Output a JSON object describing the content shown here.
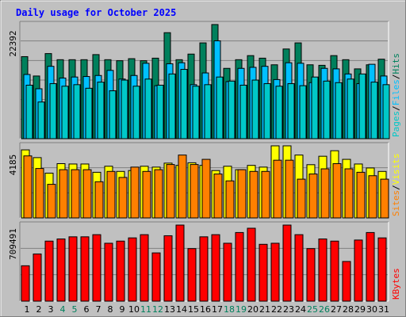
{
  "title": "Daily usage for October 2025",
  "colors": {
    "background": "#c0c0c0",
    "panel": "#c0c0c0",
    "title": "#0000ff",
    "hits": "#00805c",
    "files": "#00c0ff",
    "pages": "#00c8c8",
    "visits": "#ffff00",
    "sites": "#ff8000",
    "kbytes": "#ff0000",
    "day_normal": "#000000",
    "day_weekend": "#00805c"
  },
  "chart_data": [
    {
      "type": "bar",
      "panel": "top",
      "categories": [
        "1",
        "2",
        "3",
        "4",
        "5",
        "6",
        "7",
        "8",
        "9",
        "10",
        "11",
        "12",
        "13",
        "14",
        "15",
        "16",
        "17",
        "18",
        "19",
        "20",
        "21",
        "22",
        "23",
        "24",
        "25",
        "26",
        "27",
        "28",
        "29",
        "30",
        "31"
      ],
      "ymax_label": "22392",
      "right_labels": [
        "Pages",
        "/",
        "Files",
        "/",
        "Hits"
      ],
      "ylim": [
        0,
        22392
      ],
      "series": [
        {
          "name": "Hits",
          "values": [
            16100,
            12300,
            16700,
            15500,
            15500,
            15500,
            16500,
            15500,
            15300,
            15700,
            15300,
            15800,
            20800,
            15500,
            16600,
            18800,
            22400,
            13800,
            15500,
            16300,
            15800,
            14500,
            17600,
            18800,
            14500,
            14400,
            16300,
            15500,
            13700,
            14500,
            15600
          ]
        },
        {
          "name": "Files",
          "values": [
            12600,
            9800,
            14200,
            11900,
            12100,
            12200,
            12400,
            13400,
            11700,
            12400,
            14800,
            10400,
            14700,
            14900,
            10600,
            12900,
            19200,
            11200,
            13800,
            14000,
            14200,
            11600,
            14900,
            14800,
            11000,
            13800,
            13700,
            12700,
            10800,
            14600,
            12300
          ]
        },
        {
          "name": "Pages",
          "values": [
            10500,
            7200,
            10800,
            10300,
            10600,
            9900,
            11100,
            9400,
            11500,
            10300,
            11700,
            10500,
            12700,
            13600,
            10300,
            10600,
            12100,
            11300,
            10500,
            11500,
            10800,
            10300,
            10800,
            10400,
            12100,
            11300,
            11000,
            11700,
            12700,
            11100,
            10600
          ]
        }
      ]
    },
    {
      "type": "bar",
      "panel": "middle",
      "categories": [
        "1",
        "2",
        "3",
        "4",
        "5",
        "6",
        "7",
        "8",
        "9",
        "10",
        "11",
        "12",
        "13",
        "14",
        "15",
        "16",
        "17",
        "18",
        "19",
        "20",
        "21",
        "22",
        "23",
        "24",
        "25",
        "26",
        "27",
        "28",
        "29",
        "30",
        "31"
      ],
      "ymax_label": "4185",
      "right_labels": [
        "Sites",
        "/",
        "Visits"
      ],
      "ylim": [
        0,
        4185
      ],
      "series": [
        {
          "name": "Visits",
          "values": [
            3950,
            3500,
            2600,
            3150,
            3130,
            3130,
            2650,
            3000,
            2700,
            2750,
            3000,
            2950,
            3180,
            3050,
            3200,
            3050,
            2750,
            3000,
            2800,
            3050,
            2950,
            4185,
            4185,
            3650,
            3090,
            3580,
            3900,
            3400,
            3130,
            2900,
            2700
          ]
        },
        {
          "name": "Sites",
          "values": [
            3600,
            2870,
            1950,
            2800,
            2800,
            2800,
            2100,
            2700,
            2350,
            2950,
            2700,
            2800,
            3100,
            3650,
            3100,
            3400,
            2550,
            2150,
            2800,
            2700,
            2700,
            3350,
            3350,
            2250,
            2550,
            2850,
            3150,
            2850,
            2650,
            2450,
            2250
          ]
        }
      ]
    },
    {
      "type": "bar",
      "panel": "bottom",
      "categories": [
        "1",
        "2",
        "3",
        "4",
        "5",
        "6",
        "7",
        "8",
        "9",
        "10",
        "11",
        "12",
        "13",
        "14",
        "15",
        "16",
        "17",
        "18",
        "19",
        "20",
        "21",
        "22",
        "23",
        "24",
        "25",
        "26",
        "27",
        "28",
        "29",
        "30",
        "31"
      ],
      "ymax_label": "709491",
      "right_labels": [
        "KBytes"
      ],
      "ylim": [
        0,
        709491
      ],
      "series": [
        {
          "name": "KBytes",
          "values": [
            330000,
            440000,
            560000,
            580000,
            600000,
            600000,
            620000,
            540000,
            560000,
            590000,
            620000,
            450000,
            610000,
            709491,
            490000,
            600000,
            620000,
            540000,
            640000,
            680000,
            530000,
            540000,
            709491,
            620000,
            490000,
            580000,
            560000,
            370000,
            570000,
            640000,
            590000
          ]
        }
      ]
    }
  ]
}
